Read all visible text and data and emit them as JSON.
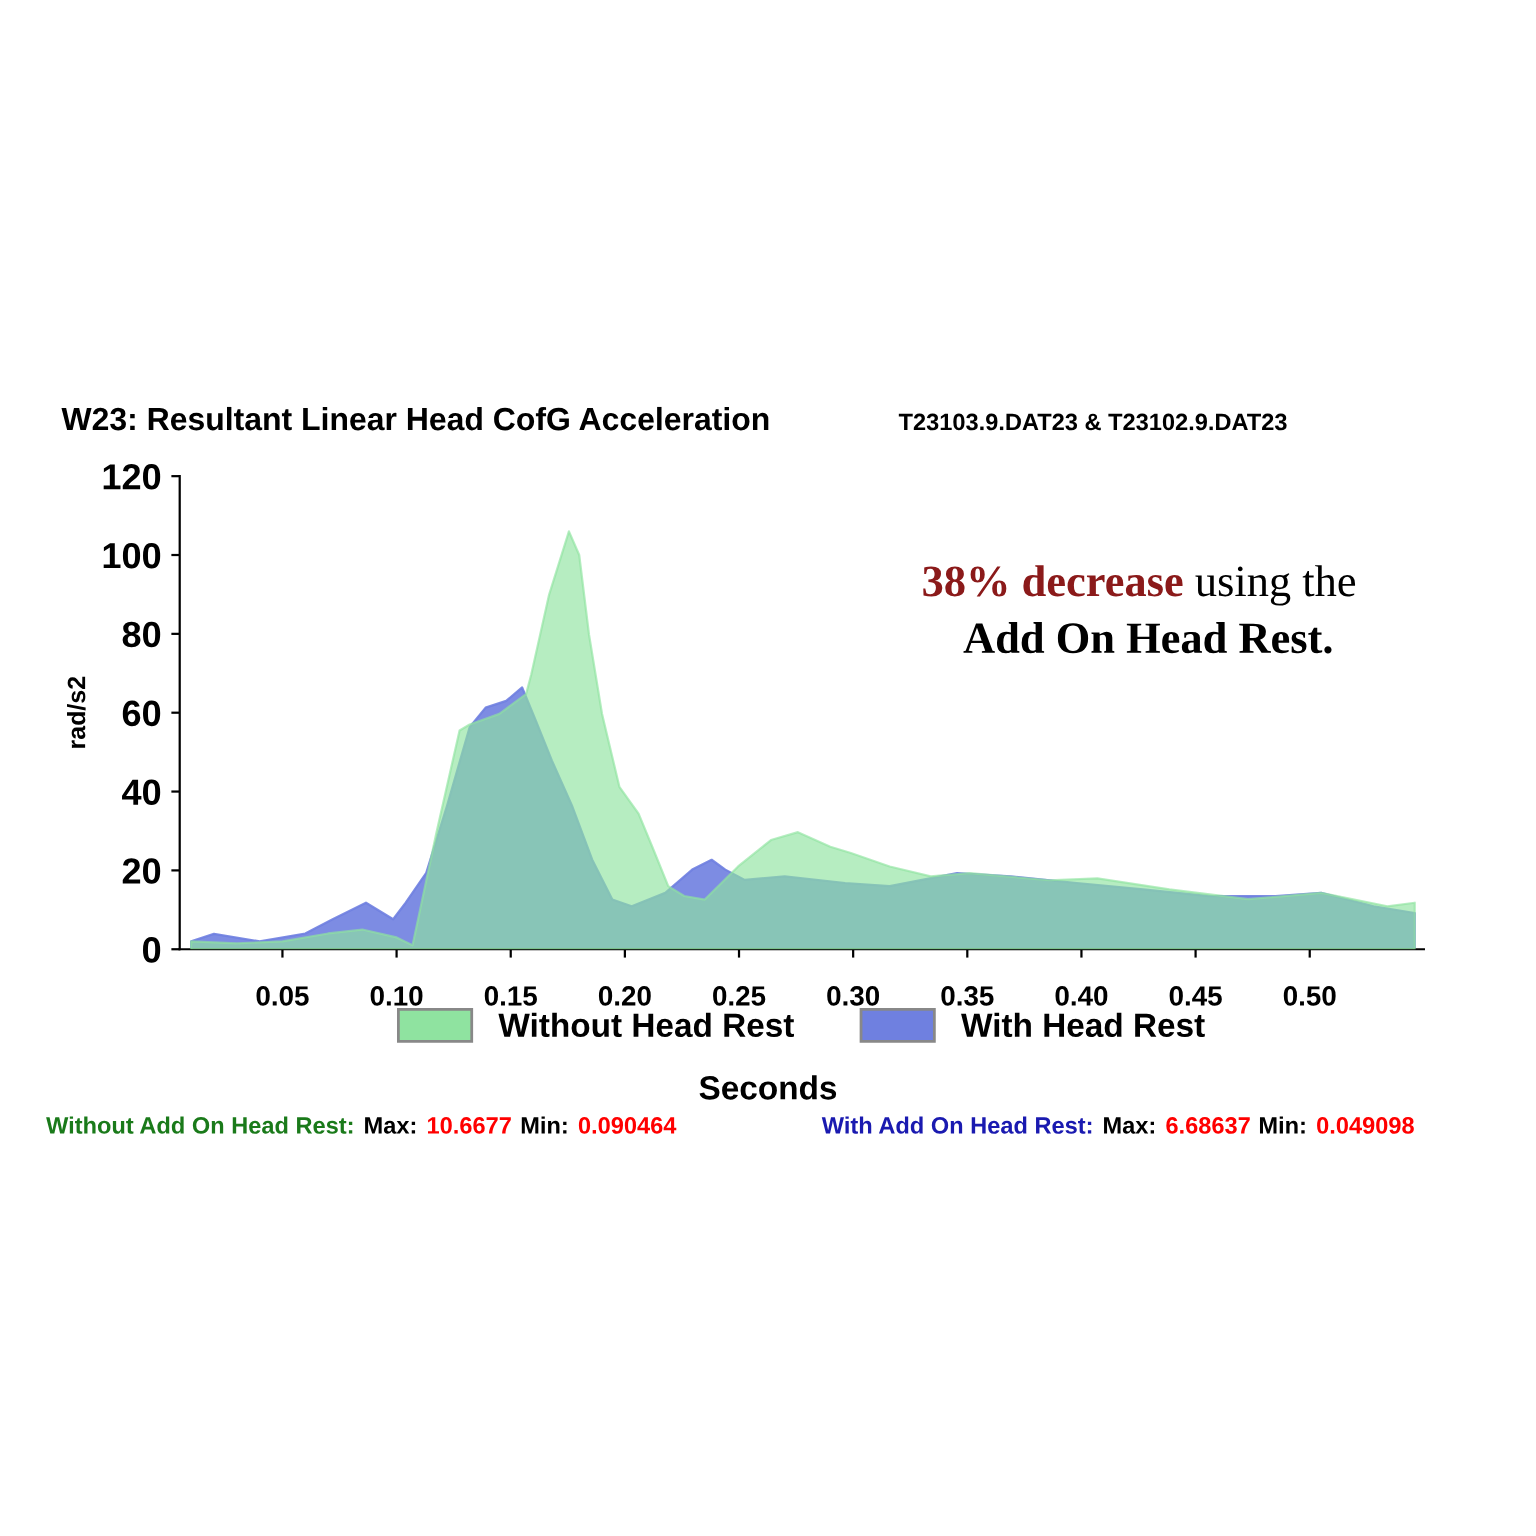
{
  "chart_data": {
    "type": "area",
    "title": "W23: Resultant Linear Head CofG Acceleration",
    "subtitle": "T23103.9.DAT23 & T23102.9.DAT23",
    "xlabel": "Seconds",
    "ylabel": "rad/s2",
    "annotations": [
      "38% decrease",
      "using the",
      "Add On Head Rest.",
      "Without Add On Head Rest:",
      "Max:",
      "10.6677",
      "Min:",
      "0.090464",
      "With Add On Head Rest:",
      "Max:",
      "6.68637",
      "Min:",
      "0.049098"
    ],
    "series": [
      {
        "name": "Without Head Rest",
        "color": "#8fe3a0",
        "x": [
          0.01,
          0.03,
          0.05,
          0.07,
          0.085,
          0.1,
          0.107,
          0.1174,
          0.1276,
          0.132,
          0.145,
          0.1567,
          0.159,
          0.1668,
          0.1755,
          0.18,
          0.1843,
          0.19,
          0.1976,
          0.206,
          0.212,
          0.219,
          0.226,
          0.235,
          0.2496,
          0.264,
          0.2758,
          0.29,
          0.299,
          0.316,
          0.334,
          0.351,
          0.386,
          0.407,
          0.4385,
          0.473,
          0.505,
          0.534,
          0.546
        ],
        "values": [
          2,
          1.5,
          2,
          4,
          5,
          3,
          1,
          29.4,
          55.5,
          57,
          59.7,
          64.7,
          69.7,
          89.9,
          106,
          100,
          79.8,
          59.7,
          41.2,
          34.4,
          26,
          16,
          13.5,
          12.6,
          21,
          27.7,
          29.7,
          26,
          24.4,
          21,
          18.5,
          19.3,
          17.5,
          18,
          15.2,
          12.7,
          14.3,
          10.9,
          11.8
        ]
      },
      {
        "name": "With Head Rest",
        "color": "#6f80e0",
        "x": [
          0.01,
          0.02,
          0.04,
          0.06,
          0.072,
          0.0866,
          0.0985,
          0.104,
          0.113,
          0.122,
          0.132,
          0.139,
          0.148,
          0.155,
          0.161,
          0.168,
          0.177,
          0.1857,
          0.1945,
          0.203,
          0.2177,
          0.2295,
          0.238,
          0.244,
          0.2525,
          0.27,
          0.2965,
          0.316,
          0.3455,
          0.369,
          0.398,
          0.427,
          0.456,
          0.485,
          0.505,
          0.528,
          0.546
        ],
        "values": [
          2,
          3.9,
          2,
          4,
          7.6,
          11.8,
          7.6,
          11.8,
          19.4,
          36.2,
          56.3,
          61.3,
          63,
          66.4,
          58,
          47.9,
          36.2,
          22.7,
          12.6,
          10.9,
          14.3,
          20.2,
          22.7,
          20.2,
          17.6,
          18.5,
          16.8,
          16,
          19.3,
          18.5,
          16.8,
          15.2,
          13.5,
          13.5,
          14.3,
          10.9,
          9.2
        ]
      }
    ],
    "xlim": [
      0.005,
      0.55
    ],
    "xticks": [
      0.05,
      {
        "value": 0.1,
        "label": "0.10"
      },
      0.15,
      {
        "value": 0.2,
        "label": "0.20"
      },
      0.25,
      {
        "value": 0.3,
        "label": "0.30"
      },
      0.35,
      {
        "value": 0.4,
        "label": "0.40"
      },
      0.45,
      {
        "value": 0.5,
        "label": "0.50"
      }
    ],
    "ylim": [
      0,
      120
    ],
    "yticks": [
      0,
      20,
      40,
      60,
      80,
      100,
      120
    ],
    "legend": "bottom"
  }
}
